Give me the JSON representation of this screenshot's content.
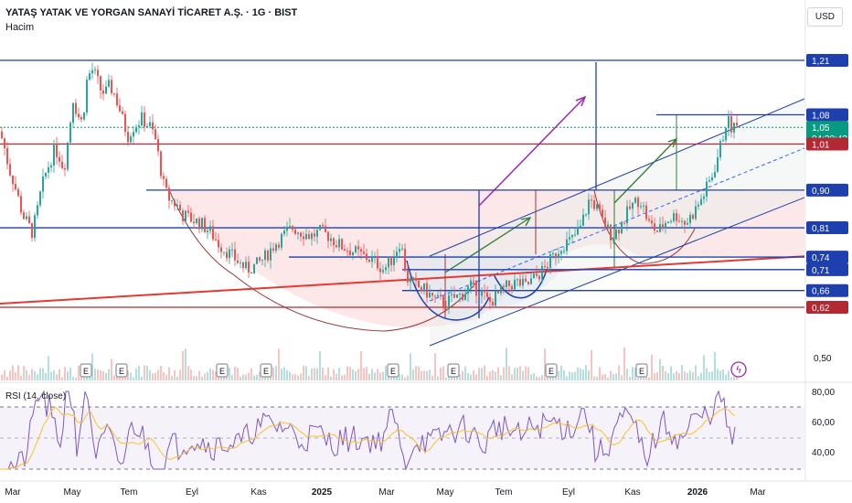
{
  "header": {
    "title": "YATAŞ YATAK VE YORGAN SANAYİ TİCARET A.Ş. · 1G · BIST",
    "indicator": "Hacim",
    "currency": "USD"
  },
  "rsi": {
    "label": "RSI (14, close)",
    "ticks": [
      "80,00",
      "60,00",
      "40,00"
    ],
    "levels": [
      70,
      50,
      30
    ]
  },
  "colors": {
    "up": "#26a69a",
    "down": "#ef5350",
    "blue_line": "#1e3fae",
    "red_line": "#e53935",
    "purple": "#9c27b0",
    "green": "#2e7d32",
    "rsi_line": "#7e57c2",
    "rsi_ma": "#fbc02d"
  },
  "chart_data": {
    "type": "candlestick",
    "title": "YATAŞ YATAK VE YORGAN SANAYİ TİCARET A.Ş. · 1G · BIST",
    "x_ticks": [
      "Mar",
      "May",
      "Tem",
      "Eyl",
      "Kas",
      "2025",
      "Mar",
      "May",
      "Tem",
      "Eyl",
      "Kas",
      "2026",
      "Mar"
    ],
    "y_tick_labels": [
      "0,50"
    ],
    "ylim": [
      0.5,
      1.25
    ],
    "price_path": [
      [
        0,
        1.04
      ],
      [
        5,
        1.0
      ],
      [
        10,
        0.95
      ],
      [
        15,
        0.92
      ],
      [
        20,
        0.88
      ],
      [
        25,
        0.84
      ],
      [
        30,
        0.82
      ],
      [
        35,
        0.8
      ],
      [
        40,
        0.84
      ],
      [
        45,
        0.9
      ],
      [
        50,
        0.94
      ],
      [
        55,
        0.97
      ],
      [
        60,
        1.0
      ],
      [
        65,
        0.98
      ],
      [
        70,
        0.95
      ],
      [
        75,
        1.03
      ],
      [
        80,
        1.12
      ],
      [
        85,
        1.08
      ],
      [
        90,
        1.06
      ],
      [
        95,
        1.16
      ],
      [
        100,
        1.19
      ],
      [
        105,
        1.17
      ],
      [
        110,
        1.14
      ],
      [
        115,
        1.13
      ],
      [
        120,
        1.15
      ],
      [
        125,
        1.13
      ],
      [
        130,
        1.1
      ],
      [
        135,
        1.06
      ],
      [
        140,
        1.03
      ],
      [
        145,
        1.05
      ],
      [
        150,
        1.06
      ],
      [
        155,
        1.07
      ],
      [
        160,
        1.06
      ],
      [
        165,
        1.05
      ],
      [
        170,
        1.02
      ],
      [
        175,
        0.96
      ],
      [
        180,
        0.9
      ],
      [
        185,
        0.88
      ],
      [
        190,
        0.87
      ],
      [
        195,
        0.86
      ],
      [
        200,
        0.84
      ],
      [
        210,
        0.83
      ],
      [
        220,
        0.82
      ],
      [
        230,
        0.8
      ],
      [
        240,
        0.77
      ],
      [
        250,
        0.75
      ],
      [
        260,
        0.73
      ],
      [
        270,
        0.71
      ],
      [
        280,
        0.72
      ],
      [
        290,
        0.74
      ],
      [
        300,
        0.77
      ],
      [
        310,
        0.79
      ],
      [
        320,
        0.81
      ],
      [
        330,
        0.8
      ],
      [
        340,
        0.79
      ],
      [
        350,
        0.8
      ],
      [
        360,
        0.79
      ],
      [
        370,
        0.77
      ],
      [
        380,
        0.76
      ],
      [
        390,
        0.75
      ],
      [
        400,
        0.74
      ],
      [
        410,
        0.73
      ],
      [
        420,
        0.71
      ],
      [
        430,
        0.74
      ],
      [
        438,
        0.78
      ],
      [
        445,
        0.69
      ],
      [
        455,
        0.67
      ],
      [
        465,
        0.66
      ],
      [
        475,
        0.64
      ],
      [
        485,
        0.63
      ],
      [
        495,
        0.64
      ],
      [
        505,
        0.65
      ],
      [
        515,
        0.67
      ],
      [
        525,
        0.66
      ],
      [
        535,
        0.63
      ],
      [
        545,
        0.65
      ],
      [
        555,
        0.67
      ],
      [
        565,
        0.68
      ],
      [
        575,
        0.67
      ],
      [
        585,
        0.69
      ],
      [
        595,
        0.71
      ],
      [
        605,
        0.74
      ],
      [
        615,
        0.77
      ],
      [
        625,
        0.78
      ],
      [
        635,
        0.81
      ],
      [
        645,
        0.88
      ],
      [
        652,
        0.86
      ],
      [
        660,
        0.82
      ],
      [
        670,
        0.79
      ],
      [
        680,
        0.82
      ],
      [
        690,
        0.86
      ],
      [
        700,
        0.88
      ],
      [
        710,
        0.82
      ],
      [
        720,
        0.8
      ],
      [
        730,
        0.83
      ],
      [
        740,
        0.84
      ],
      [
        750,
        0.82
      ],
      [
        760,
        0.85
      ],
      [
        770,
        0.89
      ],
      [
        780,
        0.94
      ],
      [
        790,
        1.02
      ],
      [
        795,
        1.07
      ],
      [
        800,
        1.05
      ],
      [
        806,
        1.05
      ]
    ],
    "horizontal_levels": [
      {
        "label": "1,21",
        "value": 1.21,
        "color": "#1e3fae"
      },
      {
        "label": "1,08",
        "value": 1.08,
        "color": "#1e3fae"
      },
      {
        "label": "1,05",
        "value": 1.05,
        "color": "#089981",
        "sublabel": "04:30:43"
      },
      {
        "label": "1,01",
        "value": 1.01,
        "color": "#b22833"
      },
      {
        "label": "0,90",
        "value": 0.9,
        "color": "#1e3fae"
      },
      {
        "label": "0,81",
        "value": 0.81,
        "color": "#1e3fae"
      },
      {
        "label": "0,74",
        "value": 0.74,
        "color": "#1e3fae"
      },
      {
        "label": "0,71",
        "value": 0.71,
        "color": "#1e3fae"
      },
      {
        "label": "0,66",
        "value": 0.66,
        "color": "#1e3fae"
      },
      {
        "label": "0,62",
        "value": 0.62,
        "color": "#b22833"
      }
    ],
    "earnings_markers": [
      "E",
      "E",
      "E",
      "E",
      "E",
      "E",
      "E",
      "E"
    ],
    "rsi_label": "RSI (14, close)",
    "rsi_ticks": [
      "80,00",
      "60,00",
      "40,00"
    ]
  }
}
